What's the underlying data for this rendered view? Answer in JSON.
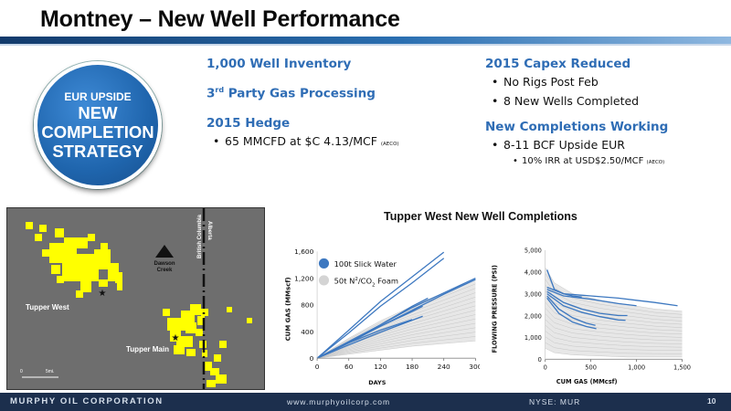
{
  "header": {
    "title": "Montney – New Well Performance"
  },
  "circle": {
    "line1": "EUR UPSIDE",
    "line2": "NEW",
    "line3": "COMPLETION",
    "line4": "STRATEGY"
  },
  "left_col": {
    "h1": "1,000 Well Inventory",
    "h2_pre": "3",
    "h2_sup": "rd",
    "h2_post": " Party Gas Processing",
    "h3": "2015 Hedge",
    "b1_main": "65 MMCFD at $C 4.13/MCF ",
    "b1_tiny": "(AECO)"
  },
  "right_col": {
    "h1": "2015 Capex Reduced",
    "b1": "No Rigs Post Feb",
    "b2": "8 New Wells Completed",
    "h2": "New Completions Working",
    "b3": "8-11 BCF Upside EUR",
    "b4_main": "10% IRR at USD$2.50/MCF ",
    "b4_tiny": "(AECO)"
  },
  "map": {
    "labels": {
      "dawson": "Dawson",
      "creek": "Creek",
      "bc": "British Columbia",
      "ab": "Alberta",
      "tupper_west": "Tupper West",
      "tupper_main": "Tupper Main",
      "scale0": "0",
      "scale5": "5mi."
    }
  },
  "chart_title": "Tupper West New Well Completions",
  "chart_data": [
    {
      "type": "line",
      "xlabel": "DAYS",
      "ylabel": "CUM GAS (MMscf)",
      "xlim": [
        0,
        300
      ],
      "ylim": [
        0,
        1600
      ],
      "xticks": [
        "0",
        "60",
        "120",
        "180",
        "240",
        "300"
      ],
      "yticks": [
        "0",
        "400",
        "800",
        "1,200",
        "1,600"
      ],
      "legend": [
        "100t Slick Water",
        "50t N²/CO₂ Foam"
      ],
      "legend_pre": "50t N",
      "legend_sup1": "2",
      "legend_mid": "/CO",
      "legend_sub2": "2",
      "legend_post": " Foam",
      "colors": {
        "slick": "#3d78c0",
        "foam": "#c8c8c8"
      },
      "series": [
        {
          "name": "100t Slick Water",
          "x": [
            0,
            60,
            120,
            180,
            240
          ],
          "y": [
            0,
            420,
            850,
            1220,
            1590
          ]
        },
        {
          "name": "100t Slick Water",
          "x": [
            0,
            60,
            120,
            180,
            240
          ],
          "y": [
            0,
            380,
            780,
            1130,
            1500
          ]
        },
        {
          "name": "100t Slick Water",
          "x": [
            0,
            60,
            120,
            180,
            240,
            300
          ],
          "y": [
            0,
            240,
            500,
            760,
            980,
            1200
          ]
        },
        {
          "name": "100t Slick Water",
          "x": [
            0,
            60,
            120,
            180,
            240,
            300
          ],
          "y": [
            0,
            230,
            480,
            720,
            960,
            1180
          ]
        },
        {
          "name": "100t Slick Water",
          "x": [
            0,
            60,
            120,
            180,
            210
          ],
          "y": [
            0,
            250,
            500,
            780,
            900
          ]
        },
        {
          "name": "100t Slick Water",
          "x": [
            0,
            60,
            120,
            180,
            200
          ],
          "y": [
            0,
            240,
            480,
            700,
            780
          ]
        },
        {
          "name": "100t Slick Water",
          "x": [
            0,
            60,
            120,
            180
          ],
          "y": [
            0,
            230,
            420,
            580
          ]
        },
        {
          "name": "100t Slick Water",
          "x": [
            0,
            60,
            120,
            180,
            200
          ],
          "y": [
            0,
            200,
            390,
            570,
            630
          ]
        }
      ],
      "foam_envelope": {
        "x": [
          0,
          60,
          120,
          180,
          240,
          300
        ],
        "upper": [
          0,
          300,
          560,
          780,
          980,
          1180
        ],
        "lower": [
          0,
          60,
          120,
          180,
          220,
          260
        ]
      }
    },
    {
      "type": "line",
      "xlabel": "CUM GAS (MMcsf)",
      "ylabel": "FLOWING PRESSURE (PSI)",
      "xlim": [
        0,
        1500
      ],
      "ylim": [
        0,
        5000
      ],
      "xticks": [
        "0",
        "500",
        "1,000",
        "1,500"
      ],
      "yticks": [
        "0",
        "1,000",
        "2,000",
        "3,000",
        "4,000",
        "5,000"
      ],
      "colors": {
        "slick": "#3d78c0",
        "foam": "#c8c8c8"
      },
      "series": [
        {
          "name": "100t Slick Water",
          "x": [
            20,
            200,
            500,
            800,
            1000,
            1200,
            1450
          ],
          "y": [
            3300,
            3000,
            2900,
            2800,
            2700,
            2600,
            2450
          ]
        },
        {
          "name": "100t Slick Water",
          "x": [
            20,
            200,
            500,
            800,
            1000
          ],
          "y": [
            3200,
            2900,
            2750,
            2550,
            2450
          ]
        },
        {
          "name": "100t Slick Water",
          "x": [
            20,
            200,
            400,
            600,
            800,
            900
          ],
          "y": [
            3100,
            2600,
            2300,
            2100,
            2000,
            2000
          ]
        },
        {
          "name": "100t Slick Water",
          "x": [
            20,
            200,
            400,
            600,
            800,
            880
          ],
          "y": [
            3000,
            2450,
            2150,
            1950,
            1800,
            1780
          ]
        },
        {
          "name": "100t Slick Water",
          "x": [
            20,
            150,
            300,
            450,
            550
          ],
          "y": [
            2900,
            2300,
            1900,
            1650,
            1550
          ]
        },
        {
          "name": "100t Slick Water",
          "x": [
            20,
            150,
            300,
            450,
            560
          ],
          "y": [
            2800,
            2100,
            1700,
            1500,
            1400
          ]
        },
        {
          "name": "100t Slick Water",
          "x": [
            20,
            100,
            200,
            300,
            400
          ],
          "y": [
            4100,
            3200,
            3000,
            2900,
            2850
          ]
        }
      ],
      "foam_envelope": {
        "x": [
          0,
          100,
          300,
          600,
          900,
          1200,
          1500
        ],
        "upper": [
          4200,
          3500,
          3000,
          2700,
          2500,
          2300,
          2200
        ],
        "lower": [
          500,
          300,
          200,
          150,
          100,
          100,
          100
        ]
      }
    }
  ],
  "footer": {
    "company": "MURPHY OIL CORPORATION",
    "url": "www.murphyoilcorp.com",
    "ticker": "NYSE: MUR",
    "page": "10"
  }
}
